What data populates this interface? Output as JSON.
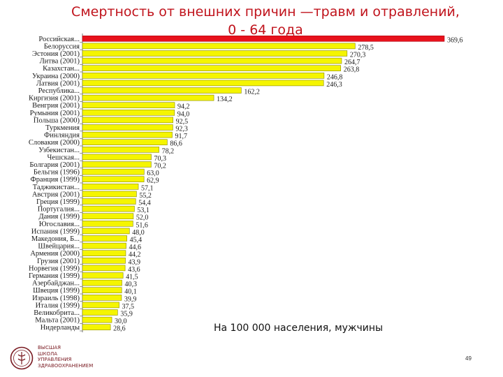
{
  "title": {
    "line1": "Смертность от внешних причин —травм и отравлений,",
    "line2": "0 - 64 года"
  },
  "subtitle": "На 100 000 населения, мужчины",
  "logo": {
    "icon": "crest-emblem-icon",
    "lines": [
      "ВЫСШАЯ",
      "ШКОЛА",
      "УПРАВЛЕНИЯ",
      "ЗДРАВООХРАНЕНИЕМ"
    ]
  },
  "page_number": "49",
  "colors": {
    "highlight": "#e8121c",
    "bar": "#f5f500",
    "bar_border": "#8a8a00",
    "title": "#c0131c"
  },
  "chart_data": {
    "type": "bar",
    "orientation": "horizontal",
    "categories": [
      "Российская...",
      "Белоруссия",
      "Эстония (2001)",
      "Литва (2001)",
      "Казахстан...",
      "Украина (2000)",
      "Латвия (2001)",
      "Республика...",
      "Киргизия (2001)",
      "Венгрия (2001)",
      "Румыния (2001)",
      "Польша (2000)",
      "Туркмения",
      "Финляндия",
      "Словакия (2000)",
      "Узбекистан...",
      "Чешская...",
      "Болгария (2001)",
      "Бельгия (1996)",
      "Франция (1999)",
      "Таджикистан...",
      "Австрия (2001)",
      "Греция (1999)",
      "Португалия...",
      "Дания (1999)",
      "Югославия...",
      "Испания (1999)",
      "Македония, Б...",
      "Швейцария...",
      "Армения (2000)",
      "Грузия (2001)",
      "Норвегия (1999)",
      "Германия (1999)",
      "Азербайджан...",
      "Швеция (1999)",
      "Израиль (1998)",
      "Италия (1999)",
      "Великобрита...",
      "Мальта (2001)",
      "Нидерланды"
    ],
    "values": [
      369.6,
      278.5,
      270.3,
      264.7,
      263.8,
      246.8,
      246.3,
      162.2,
      134.2,
      94.2,
      94.0,
      92.5,
      92.3,
      91.7,
      86.6,
      78.2,
      70.3,
      70.2,
      63.0,
      62.9,
      57.1,
      55.2,
      54.4,
      53.1,
      52.0,
      51.6,
      48.0,
      45.4,
      44.6,
      44.2,
      43.9,
      43.6,
      41.5,
      40.3,
      40.1,
      39.9,
      37.5,
      35.9,
      30.0,
      28.6
    ],
    "value_labels": [
      "369,6",
      "278,5",
      "270,3",
      "264,7",
      "263,8",
      "246,8",
      "246,3",
      "162,2",
      "134,2",
      "94,2",
      "94,0",
      "92,5",
      "92,3",
      "91,7",
      "86,6",
      "78,2",
      "70,3",
      "70,2",
      "63,0",
      "62,9",
      "57,1",
      "55,2",
      "54,4",
      "53,1",
      "52,0",
      "51,6",
      "48,0",
      "45,4",
      "44,6",
      "44,2",
      "43,9",
      "43,6",
      "41,5",
      "40,3",
      "40,1",
      "39,9",
      "37,5",
      "35,9",
      "30,0",
      "28,6"
    ],
    "highlight_index": 0,
    "xlim": [
      0,
      369.6
    ],
    "grid": false,
    "legend": "none"
  }
}
